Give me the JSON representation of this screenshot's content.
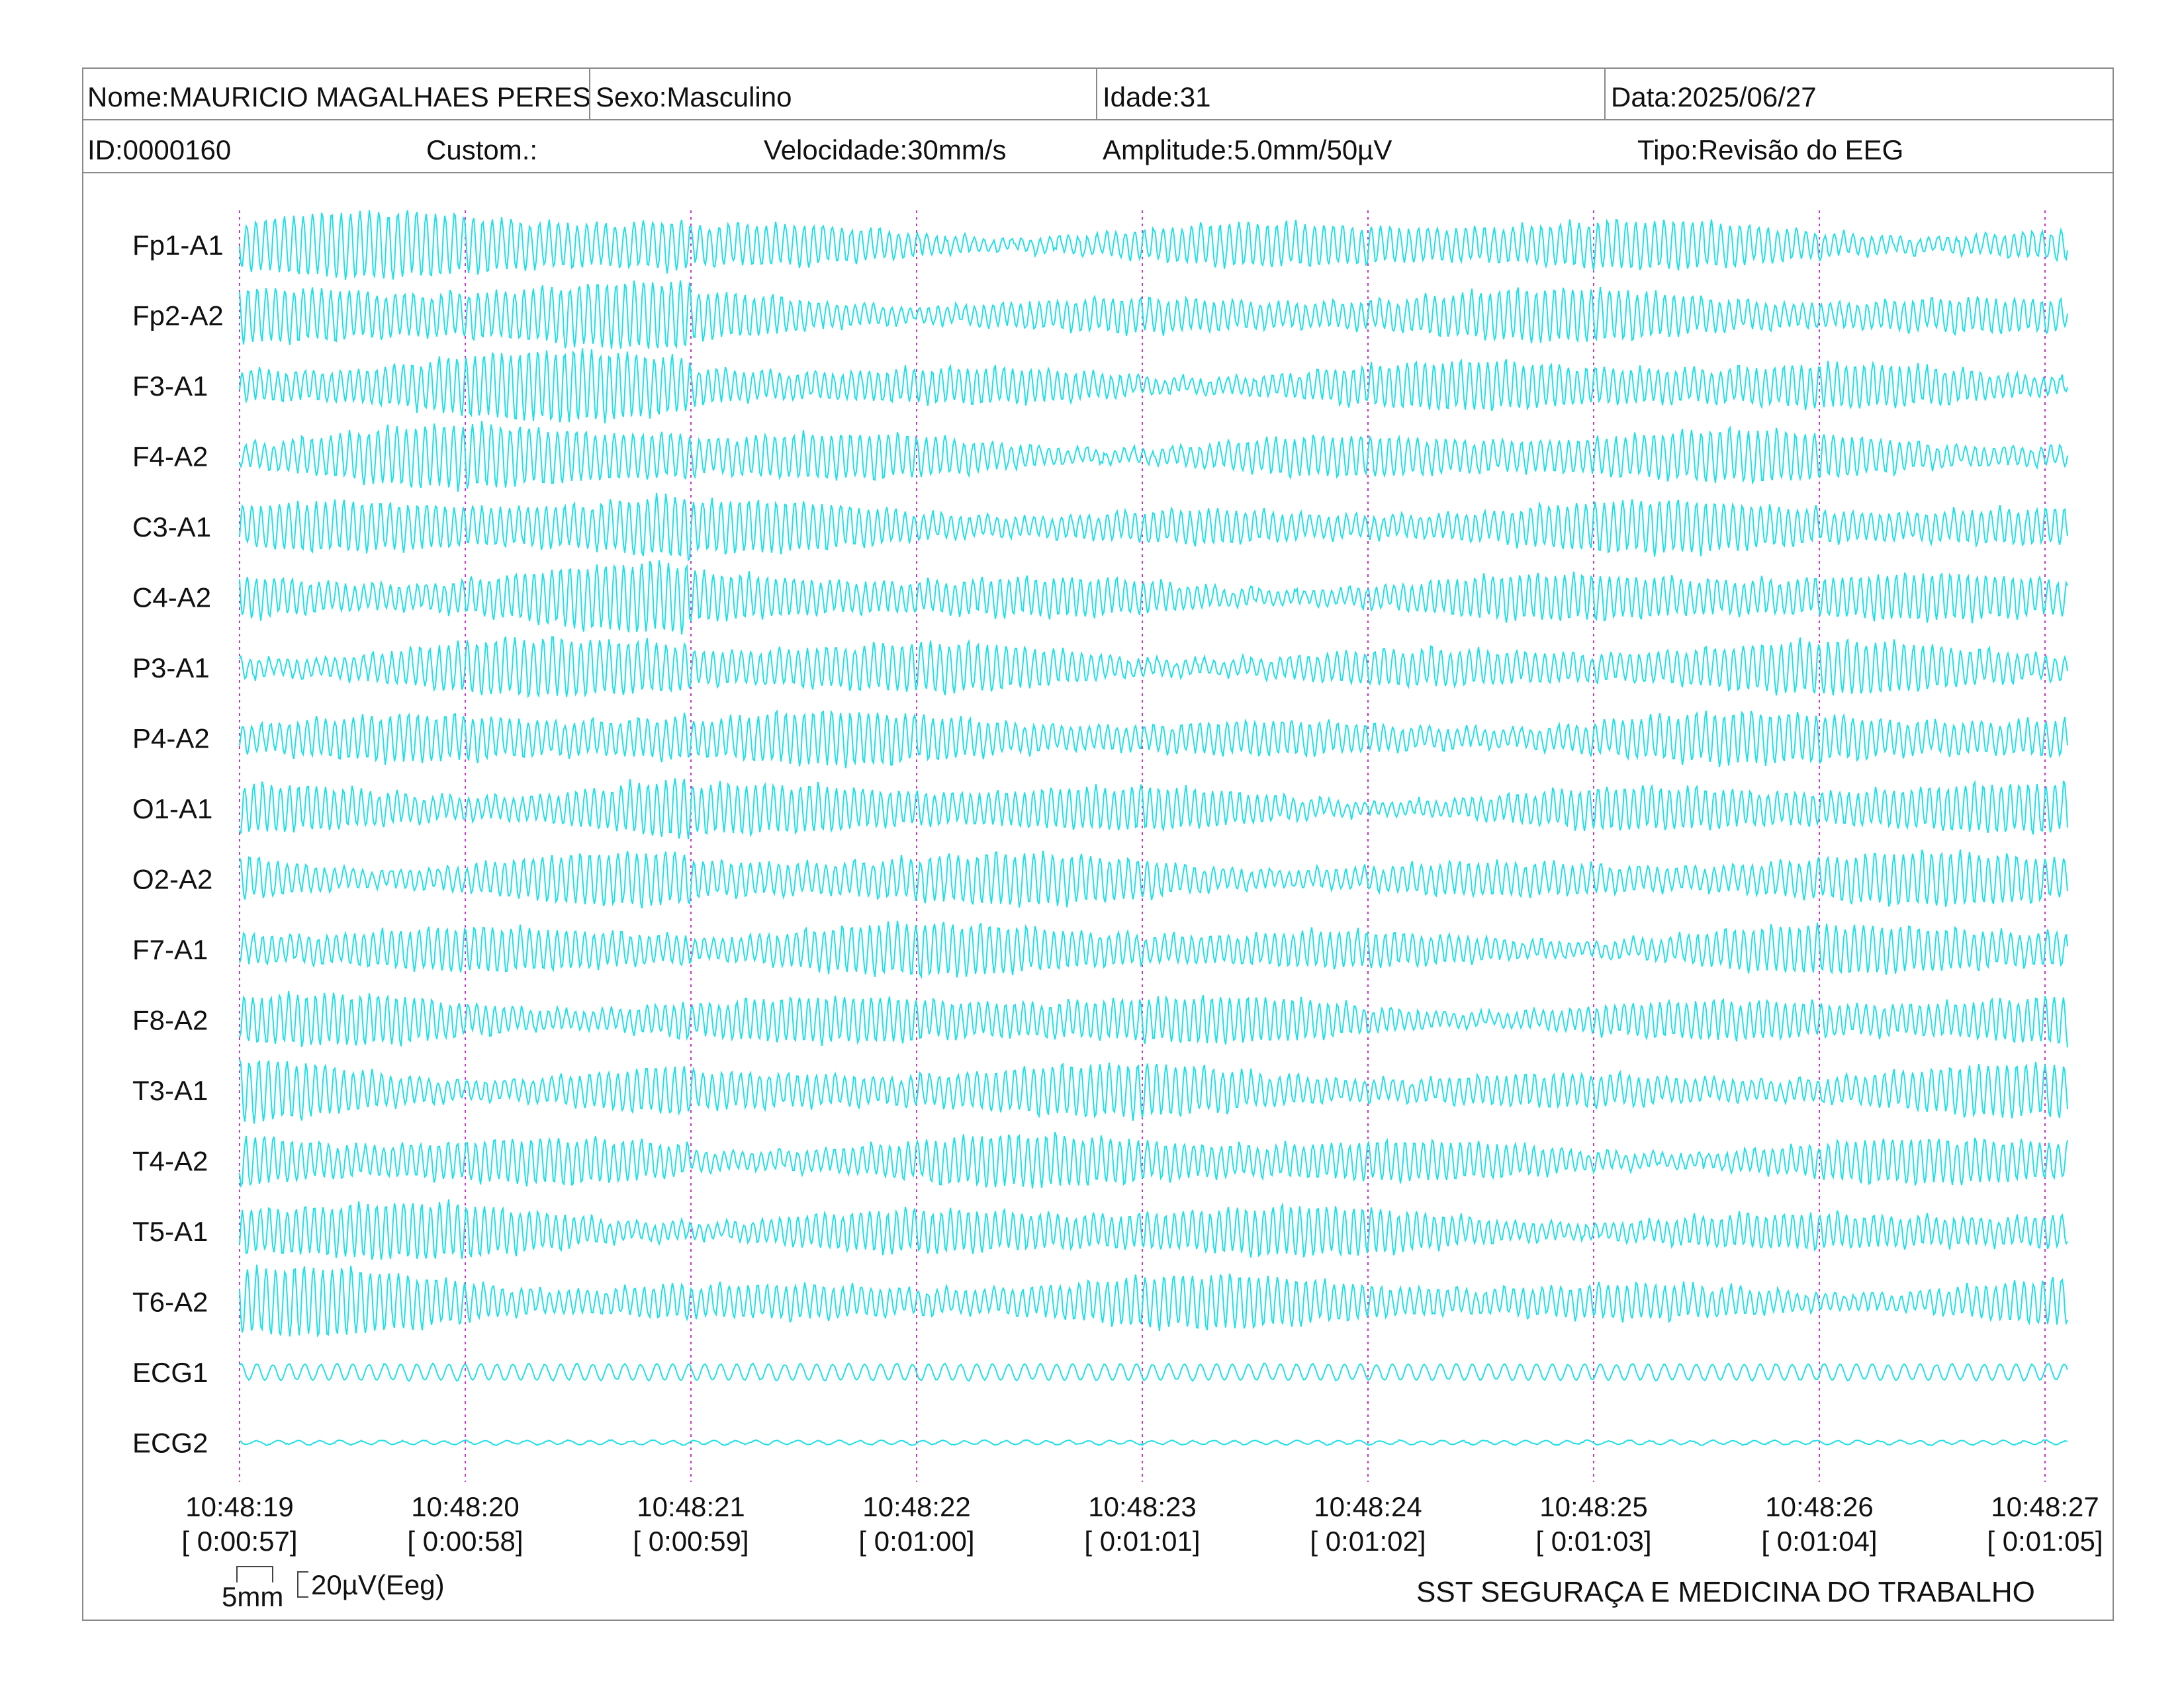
{
  "header": {
    "nome": "Nome:MAURICIO MAGALHAES PERES",
    "sexo": "Sexo:Masculino",
    "idade": "Idade:31",
    "data": "Data:2025/06/27",
    "id": "ID:0000160",
    "custom": "Custom.:",
    "velocidade": "Velocidade:30mm/s",
    "amplitude": "Amplitude:5.0mm/50µV",
    "tipo": "Tipo:Revisão do EEG"
  },
  "scale_bar": {
    "time_label": "5mm",
    "amplitude_label": "20µV(Eeg)"
  },
  "footer": {
    "company": "SST SEGURAÇA E MEDICINA DO TRABALHO"
  },
  "colors": {
    "trace": "#1fe0e6",
    "gridline": "#cc33cc",
    "frame": "#8a8a8a"
  },
  "chart_data": {
    "type": "line",
    "channels": [
      "Fp1-A1",
      "Fp2-A2",
      "F3-A1",
      "F4-A2",
      "C3-A1",
      "C4-A2",
      "P3-A1",
      "P4-A2",
      "O1-A1",
      "O2-A2",
      "F7-A1",
      "F8-A2",
      "T3-A1",
      "T4-A2",
      "T5-A1",
      "T6-A2",
      "ECG1",
      "ECG2"
    ],
    "time_ticks": [
      {
        "clock": "10:48:19",
        "elapsed": "[ 0:00:57]"
      },
      {
        "clock": "10:48:20",
        "elapsed": "[ 0:00:58]"
      },
      {
        "clock": "10:48:21",
        "elapsed": "[ 0:00:59]"
      },
      {
        "clock": "10:48:22",
        "elapsed": "[ 0:01:00]"
      },
      {
        "clock": "10:48:23",
        "elapsed": "[ 0:01:01]"
      },
      {
        "clock": "10:48:24",
        "elapsed": "[ 0:01:02]"
      },
      {
        "clock": "10:48:25",
        "elapsed": "[ 0:01:03]"
      },
      {
        "clock": "10:48:26",
        "elapsed": "[ 0:01:04]"
      },
      {
        "clock": "10:48:27",
        "elapsed": "[ 0:01:05]"
      }
    ],
    "x_range_seconds": [
      0,
      8.1
    ],
    "grid": "vertical dashed line each second"
  }
}
